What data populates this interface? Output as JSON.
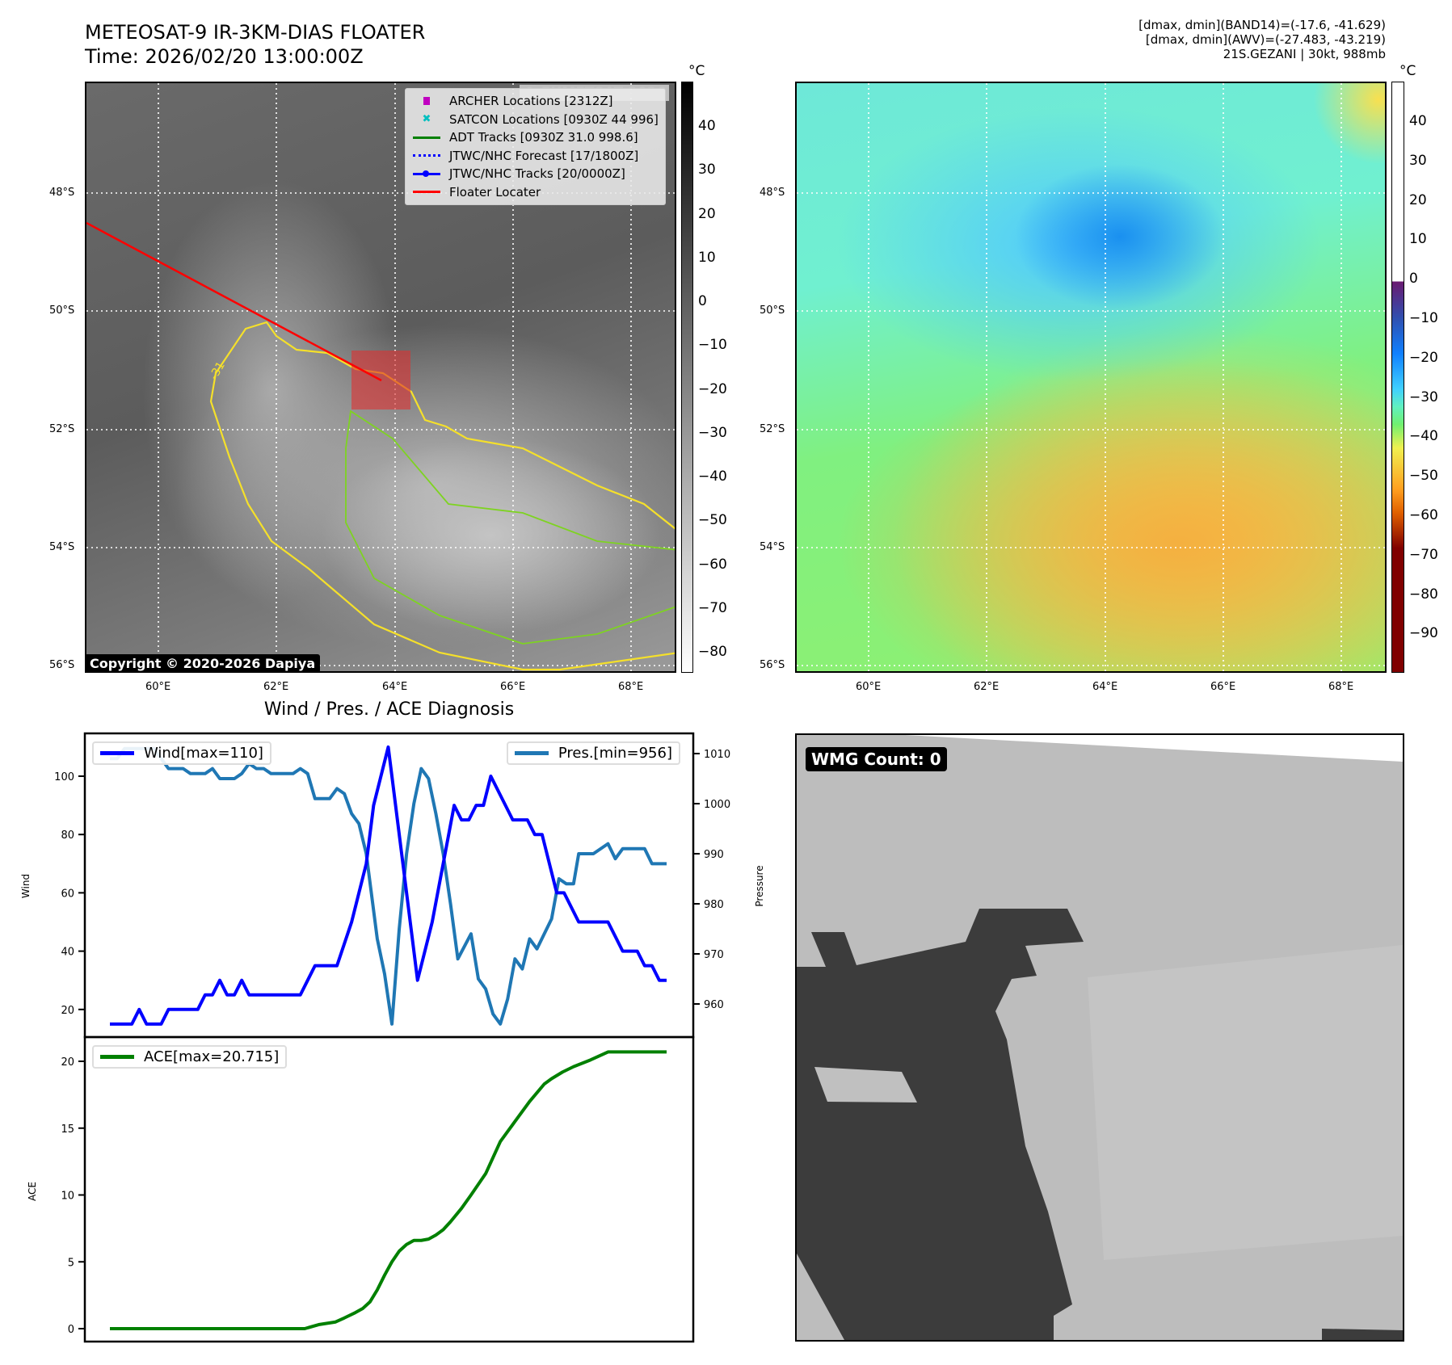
{
  "header": {
    "title": "METEOSAT-9 IR-3KM-DIAS FLOATER",
    "time": "Time: 2026/02/20 13:00:00Z",
    "info_line1": "[dmax, dmin](BAND14)=(-17.6, -41.629)",
    "info_line2": "[dmax, dmin](AWV)=(-27.483, -43.219)",
    "info_line3": "21S.GEZANI | 30kt, 988mb"
  },
  "ir_map": {
    "watermark": "© EUMETSAT 2026",
    "copyright": "Copyright © 2020-2026 Dapiya",
    "contour_label": "-31",
    "lat_labels": [
      "48°S",
      "50°S",
      "52°S",
      "54°S",
      "56°S"
    ],
    "lon_labels": [
      "60°E",
      "62°E",
      "64°E",
      "66°E",
      "68°E"
    ],
    "legend": [
      {
        "label": "ARCHER Locations [2312Z]",
        "icon": "square-marker",
        "color": "#c000c0"
      },
      {
        "label": "SATCON Locations [0930Z 44 996]",
        "icon": "x-marker",
        "color": "#00bfbf"
      },
      {
        "label": "ADT Tracks [0930Z 31.0 998.6]",
        "icon": "line",
        "color": "#008000"
      },
      {
        "label": "JTWC/NHC Forecast [17/1800Z]",
        "icon": "dotted-line",
        "color": "#0000ff"
      },
      {
        "label": "JTWC/NHC Tracks [20/0000Z]",
        "icon": "line-dot",
        "color": "#0000ff"
      },
      {
        "label": "Floater Locater",
        "icon": "line",
        "color": "#ff0000"
      }
    ],
    "colorbar": {
      "unit": "°C",
      "ticks": [
        "40",
        "30",
        "20",
        "10",
        "0",
        "−10",
        "−20",
        "−30",
        "−40",
        "−50",
        "−60",
        "−70",
        "−80"
      ]
    }
  },
  "wv_map": {
    "lat_labels": [
      "48°S",
      "50°S",
      "52°S",
      "54°S",
      "56°S"
    ],
    "lon_labels": [
      "60°E",
      "62°E",
      "64°E",
      "66°E",
      "68°E"
    ],
    "colorbar": {
      "unit": "°C",
      "ticks": [
        "40",
        "30",
        "20",
        "10",
        "0",
        "−10",
        "−20",
        "−30",
        "−40",
        "−50",
        "−60",
        "−70",
        "−80",
        "−90"
      ]
    }
  },
  "wmg_panel": {
    "badge": "WMG Count: 0"
  },
  "chart_data": [
    {
      "type": "line",
      "title": "Wind / Pres. / ACE Diagnosis",
      "ylabel": "Wind",
      "y2label": "Pressure",
      "ylim": [
        11,
        115
      ],
      "y2lim": [
        953,
        1014
      ],
      "yticks": [
        "20",
        "40",
        "60",
        "80",
        "100"
      ],
      "y2ticks": [
        "960",
        "970",
        "980",
        "990",
        "1000",
        "1010"
      ],
      "series": [
        {
          "name": "Wind[max=110]",
          "color": "#0000ff",
          "axis": "left",
          "x": [
            0,
            3,
            4,
            5,
            7,
            8,
            12,
            13,
            14,
            15,
            16,
            17,
            18,
            19,
            26,
            28,
            31,
            33,
            34,
            35,
            36,
            38,
            40,
            42,
            44,
            47,
            48,
            49,
            50,
            51,
            52,
            55,
            57,
            58,
            59,
            61,
            62,
            64,
            68,
            70,
            72,
            73,
            74,
            75,
            76
          ],
          "y": [
            15,
            15,
            20,
            15,
            15,
            20,
            20,
            25,
            25,
            30,
            25,
            25,
            30,
            25,
            25,
            35,
            35,
            50,
            60,
            70,
            90,
            110,
            70,
            30,
            50,
            90,
            85,
            85,
            90,
            90,
            100,
            85,
            85,
            80,
            80,
            60,
            60,
            50,
            50,
            40,
            40,
            35,
            35,
            30,
            30
          ]
        },
        {
          "name": "Pres.[min=956]",
          "color": "#1f77b4",
          "axis": "right",
          "x": [
            0,
            1,
            2,
            6,
            8,
            10,
            11,
            13,
            14,
            15,
            17,
            18,
            19,
            20,
            21,
            22,
            25,
            26,
            27,
            28,
            30,
            31,
            32,
            33,
            34,
            35,
            36.5,
            37.5,
            38.5,
            39.5,
            40.5,
            41.5,
            42.5,
            43.5,
            44.5,
            45.5,
            46.5,
            47.5,
            49.3,
            50.3,
            51.3,
            52.3,
            53.3,
            54.3,
            55.3,
            56.3,
            57.3,
            58.3,
            60.3,
            61.3,
            62.3,
            63.3,
            64,
            66,
            68,
            69,
            70,
            73,
            74,
            76
          ],
          "y": [
            1009,
            1009,
            1011,
            1011,
            1007,
            1007,
            1006,
            1006,
            1007,
            1005,
            1005,
            1006,
            1008,
            1007,
            1007,
            1006,
            1006,
            1007,
            1006,
            1001,
            1001,
            1003,
            1002,
            998,
            996,
            990,
            973,
            966,
            956,
            975,
            990,
            1000,
            1007,
            1005,
            998,
            990,
            980,
            969,
            974,
            965,
            963,
            958,
            956,
            961,
            969,
            967,
            973,
            971,
            977,
            985,
            984,
            984,
            990,
            990,
            992,
            989,
            991,
            991,
            988,
            988
          ]
        }
      ]
    },
    {
      "type": "line",
      "ylabel": "ACE",
      "ylim": [
        -1,
        21.8
      ],
      "yticks": [
        "0",
        "5",
        "10",
        "15",
        "20"
      ],
      "series": [
        {
          "name": "ACE[max=20.715]",
          "color": "#008000",
          "x": [
            0,
            26.6,
            28.5,
            30.8,
            32,
            33.5,
            34.5,
            35.5,
            36.5,
            37.5,
            38.5,
            39.5,
            40.5,
            41.5,
            42.5,
            43.5,
            44.5,
            45.5,
            46.5,
            48,
            49.3,
            51.3,
            53.3,
            55.3,
            57.3,
            59.3,
            60.3,
            61.8,
            63.3,
            65.6,
            68,
            76
          ],
          "y": [
            0,
            0,
            0.3,
            0.5,
            0.8,
            1.2,
            1.5,
            2,
            2.9,
            4,
            5,
            5.8,
            6.3,
            6.6,
            6.6,
            6.7,
            7,
            7.4,
            8,
            9,
            10,
            11.6,
            14,
            15.5,
            17,
            18.3,
            18.7,
            19.2,
            19.6,
            20.1,
            20.7,
            20.7
          ]
        }
      ]
    }
  ]
}
